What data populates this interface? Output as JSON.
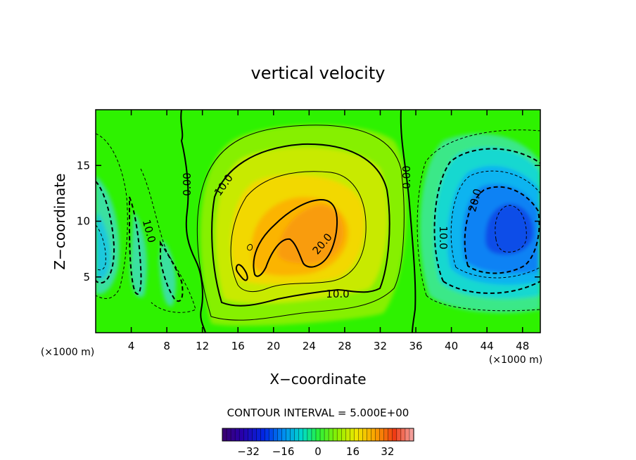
{
  "chart_data": {
    "type": "contour",
    "title": "vertical velocity",
    "xlabel": "X−coordinate",
    "ylabel": "Z−coordinate",
    "x_unit_left": "(×1000 m)",
    "x_unit_right": "(×1000 m)",
    "xlim": [
      0,
      50
    ],
    "ylim": [
      0,
      20
    ],
    "x_ticks": [
      4,
      8,
      12,
      16,
      20,
      24,
      28,
      32,
      36,
      40,
      44,
      48
    ],
    "y_ticks": [
      5,
      10,
      15
    ],
    "contour_interval_text": "CONTOUR INTERVAL = 5.000E+00",
    "contour_interval": 5.0,
    "contour_labels": [
      {
        "text": "0.00",
        "x": 10.3,
        "z": 13.2
      },
      {
        "text": "0.00",
        "x": 34.6,
        "z": 13.8
      },
      {
        "text": "10.0",
        "x": 14.2,
        "z": 13.0
      },
      {
        "text": "20.0",
        "x": 25.3,
        "z": 7.9
      },
      {
        "text": "10.0",
        "x": 27.0,
        "z": 3.6
      },
      {
        "text": "20.0",
        "x": 42.5,
        "z": 11.7
      },
      {
        "text": "10.0",
        "x": 38.3,
        "z": 8.6
      },
      {
        "text": "10.0",
        "x": 5.5,
        "z": 9.0
      }
    ],
    "fields": {
      "updraft": {
        "center_x": 23.5,
        "center_z": 10.0,
        "peak": 26
      },
      "downdraft_right": {
        "center_x": 45.5,
        "center_z": 10.0,
        "peak": -24
      },
      "downdraft_left": {
        "center_x": 0.5,
        "center_z": 7.0,
        "peak": -14
      }
    },
    "colorbar": {
      "range": [
        -44,
        44
      ],
      "tick_labels": [
        "−32",
        "−16",
        "0",
        "16",
        "32"
      ],
      "tick_values": [
        -32,
        -16,
        0,
        16,
        32
      ]
    }
  }
}
